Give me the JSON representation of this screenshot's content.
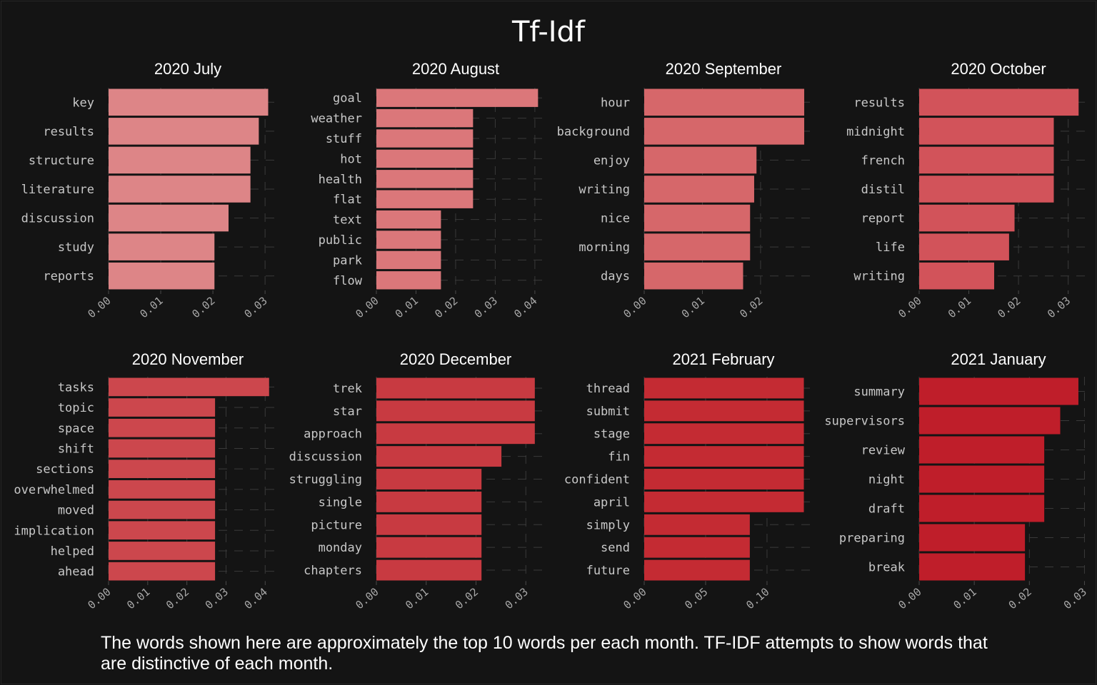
{
  "title": "Tf-Idf",
  "caption": "The words shown here are approximately the top 10 words per each month. TF-IDF attempts to show words that are distinctive of each month.",
  "chart_data": [
    {
      "type": "bar",
      "orientation": "horizontal",
      "title": "2020 July",
      "color": "#dd8587",
      "categories": [
        "key",
        "results",
        "structure",
        "literature",
        "discussion",
        "study",
        "reports"
      ],
      "values": [
        0.0306,
        0.0288,
        0.0272,
        0.0272,
        0.023,
        0.0203,
        0.0203
      ],
      "xlim": [
        0,
        0.0319
      ],
      "xticks": [
        0,
        0.01,
        0.02,
        0.03
      ],
      "xtick_labels": [
        "0.00",
        "0.01",
        "0.02",
        "0.03"
      ]
    },
    {
      "type": "bar",
      "orientation": "horizontal",
      "title": "2020 August",
      "color": "#db777a",
      "categories": [
        "goal",
        "weather",
        "stuff",
        "hot",
        "health",
        "flat",
        "text",
        "public",
        "park",
        "flow"
      ],
      "values": [
        0.0408,
        0.0244,
        0.0244,
        0.0244,
        0.0244,
        0.0244,
        0.0163,
        0.0163,
        0.0163,
        0.0163
      ],
      "xlim": [
        0,
        0.042
      ],
      "xticks": [
        0,
        0.01,
        0.02,
        0.03,
        0.04
      ],
      "xtick_labels": [
        "0.00",
        "0.01",
        "0.02",
        "0.03",
        "0.04"
      ]
    },
    {
      "type": "bar",
      "orientation": "horizontal",
      "title": "2020 September",
      "color": "#d6676a",
      "categories": [
        "hour",
        "background",
        "enjoy",
        "writing",
        "nice",
        "morning",
        "days"
      ],
      "values": [
        0.0275,
        0.0275,
        0.0193,
        0.0189,
        0.0182,
        0.0182,
        0.017
      ],
      "xlim": [
        0,
        0.0286
      ],
      "xticks": [
        0,
        0.01,
        0.02
      ],
      "xtick_labels": [
        "0.00",
        "0.01",
        "0.02"
      ]
    },
    {
      "type": "bar",
      "orientation": "horizontal",
      "title": "2020 October",
      "color": "#d2535a",
      "categories": [
        "results",
        "midnight",
        "french",
        "distil",
        "report",
        "life",
        "writing"
      ],
      "values": [
        0.0321,
        0.0271,
        0.0271,
        0.0271,
        0.0192,
        0.0181,
        0.0151
      ],
      "xlim": [
        0,
        0.0335
      ],
      "xticks": [
        0,
        0.01,
        0.02,
        0.03
      ],
      "xtick_labels": [
        "0.00",
        "0.01",
        "0.02",
        "0.03"
      ]
    },
    {
      "type": "bar",
      "orientation": "horizontal",
      "title": "2020 November",
      "color": "#cc474d",
      "categories": [
        "tasks",
        "topic",
        "space",
        "shift",
        "sections",
        "overwhelmed",
        "moved",
        "implication",
        "helped",
        "ahead"
      ],
      "values": [
        0.041,
        0.0272,
        0.0272,
        0.0272,
        0.0272,
        0.0272,
        0.0272,
        0.0272,
        0.0272,
        0.0272
      ],
      "xlim": [
        0,
        0.0425
      ],
      "xticks": [
        0,
        0.01,
        0.02,
        0.03,
        0.04
      ],
      "xtick_labels": [
        "0.00",
        "0.01",
        "0.02",
        "0.03",
        "0.04"
      ]
    },
    {
      "type": "bar",
      "orientation": "horizontal",
      "title": "2020 December",
      "color": "#c83a41",
      "categories": [
        "trek",
        "star",
        "approach",
        "discussion",
        "struggling",
        "single",
        "picture",
        "monday",
        "chapters"
      ],
      "values": [
        0.0318,
        0.0318,
        0.0318,
        0.0251,
        0.0211,
        0.0211,
        0.0211,
        0.0211,
        0.0211
      ],
      "xlim": [
        0,
        0.0334
      ],
      "xticks": [
        0,
        0.01,
        0.02,
        0.03
      ],
      "xtick_labels": [
        "0.00",
        "0.01",
        "0.02",
        "0.03"
      ]
    },
    {
      "type": "bar",
      "orientation": "horizontal",
      "title": "2021 February",
      "color": "#c42b33",
      "categories": [
        "thread",
        "submit",
        "stage",
        "fin",
        "confident",
        "april",
        "simply",
        "send",
        "future"
      ],
      "values": [
        0.13,
        0.13,
        0.13,
        0.13,
        0.13,
        0.13,
        0.086,
        0.086,
        0.086
      ],
      "xlim": [
        0,
        0.1355
      ],
      "xticks": [
        0,
        0.05,
        0.1
      ],
      "xtick_labels": [
        "0.00",
        "0.05",
        "0.10"
      ]
    },
    {
      "type": "bar",
      "orientation": "horizontal",
      "title": "2021 January",
      "color": "#bf1e2a",
      "categories": [
        "summary",
        "supervisors",
        "review",
        "night",
        "draft",
        "preparing",
        "break"
      ],
      "values": [
        0.0289,
        0.0256,
        0.0227,
        0.0227,
        0.0227,
        0.0192,
        0.0192
      ],
      "xlim": [
        0,
        0.0302
      ],
      "xticks": [
        0,
        0.01,
        0.02,
        0.03
      ],
      "xtick_labels": [
        "0.00",
        "0.01",
        "0.02",
        "0.03"
      ]
    }
  ]
}
